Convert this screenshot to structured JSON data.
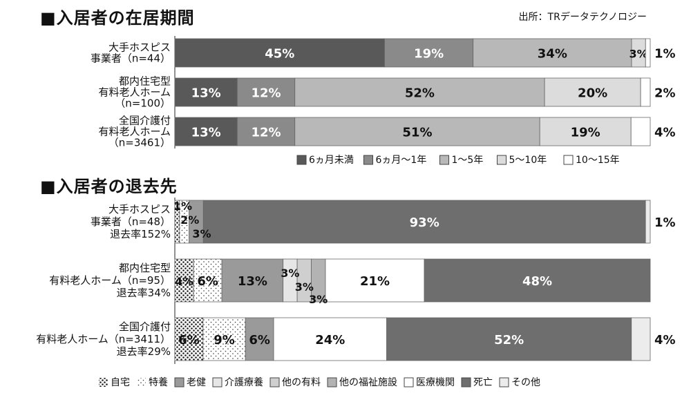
{
  "header": {
    "title1": "■入居者の在居期間",
    "title2": "■入居者の退去先",
    "source": "出所：TRデータテクノロジー"
  },
  "chart_data": [
    {
      "type": "bar",
      "orientation": "horizontal",
      "stacked": true,
      "percent": true,
      "title": "■入居者の在居期間",
      "rows": [
        {
          "label": [
            "大手ホスピス",
            "事業者（n=44）"
          ],
          "values": [
            45,
            19,
            34,
            3,
            1
          ]
        },
        {
          "label": [
            "都内住宅型",
            "有料老人ホーム",
            "（n=100）"
          ],
          "values": [
            13,
            12,
            52,
            20,
            2
          ]
        },
        {
          "label": [
            "全国介護付",
            "有料老人ホーム",
            "（n=3461）"
          ],
          "values": [
            13,
            12,
            51,
            19,
            4
          ]
        }
      ],
      "legend": [
        "6ヵ月未満",
        "6ヵ月〜1年",
        "1〜5年",
        "5〜10年",
        "10〜15年"
      ],
      "colors": [
        "#595959",
        "#8a8a8a",
        "#b8b8b8",
        "#dcdcdc",
        "#ffffff"
      ]
    },
    {
      "type": "bar",
      "orientation": "horizontal",
      "stacked": true,
      "percent": true,
      "title": "■入居者の退去先",
      "rows": [
        {
          "label": [
            "大手ホスピス",
            "事業者（n=48）",
            "退去率152%"
          ],
          "values": [
            1,
            2,
            3,
            0,
            0,
            0,
            0,
            93,
            1
          ]
        },
        {
          "label": [
            "都内住宅型",
            "有料老人ホーム（n=95）",
            "退去率34%"
          ],
          "values": [
            4,
            6,
            13,
            3,
            3,
            3,
            21,
            48,
            0
          ]
        },
        {
          "label": [
            "全国介護付",
            "有料老人ホーム（n=3411）",
            "退去率29%"
          ],
          "values": [
            6,
            9,
            6,
            0,
            0,
            0,
            24,
            52,
            4
          ]
        }
      ],
      "legend": [
        "自宅",
        "特養",
        "老健",
        "介護療養",
        "他の有料",
        "他の福祉施設",
        "医療機関",
        "死亡",
        "その他"
      ],
      "colors": [
        "#ffffff",
        "#ffffff",
        "#9a9a9a",
        "#e6e6e6",
        "#cfcfcf",
        "#b3b3b3",
        "#ffffff",
        "#6e6e6e",
        "#ececec"
      ]
    }
  ]
}
